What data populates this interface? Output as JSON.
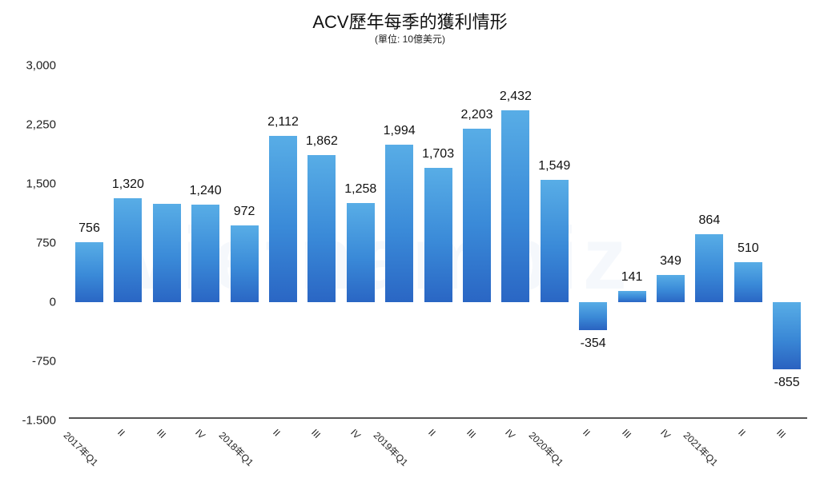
{
  "title": "ACV歷年每季的獲利情形",
  "subtitle": "(單位: 10億美元)",
  "colors": {
    "bar_top": "#58ade6",
    "bar_bottom": "#2a66c4",
    "axis": "#555555",
    "text": "#111111"
  },
  "y_ticks": [
    "3,000",
    "2,250",
    "1,500",
    "750",
    "0",
    "-750",
    "-1.500"
  ],
  "chart_data": {
    "type": "bar",
    "title": "ACV歷年每季的獲利情形",
    "subtitle": "(單位: 10億美元)",
    "xlabel": "",
    "ylabel": "",
    "ylim": [
      -1500,
      3000
    ],
    "y_ticks": [
      3000,
      2250,
      1500,
      750,
      0,
      -750,
      -1500
    ],
    "grid": false,
    "legend": null,
    "categories": [
      "2017年Q1",
      "II",
      "III",
      "IV",
      "2018年Q1",
      "II",
      "III",
      "IV",
      "2019年Q1",
      "II",
      "III",
      "IV",
      "2020年Q1",
      "II",
      "III",
      "IV",
      "2021年Q1",
      "II",
      "III"
    ],
    "values": [
      756,
      1320,
      1250,
      1240,
      972,
      2112,
      1862,
      1258,
      1994,
      1703,
      2203,
      2432,
      1549,
      -354,
      141,
      349,
      864,
      510,
      -855
    ],
    "labels": [
      "756",
      "1,320",
      "",
      "1,240",
      "972",
      "2,112",
      "1,862",
      "1,258",
      "1,994",
      "1,703",
      "2,203",
      "2,432",
      "1,549",
      "-354",
      "141",
      "349",
      "864",
      "510",
      "-855"
    ]
  }
}
